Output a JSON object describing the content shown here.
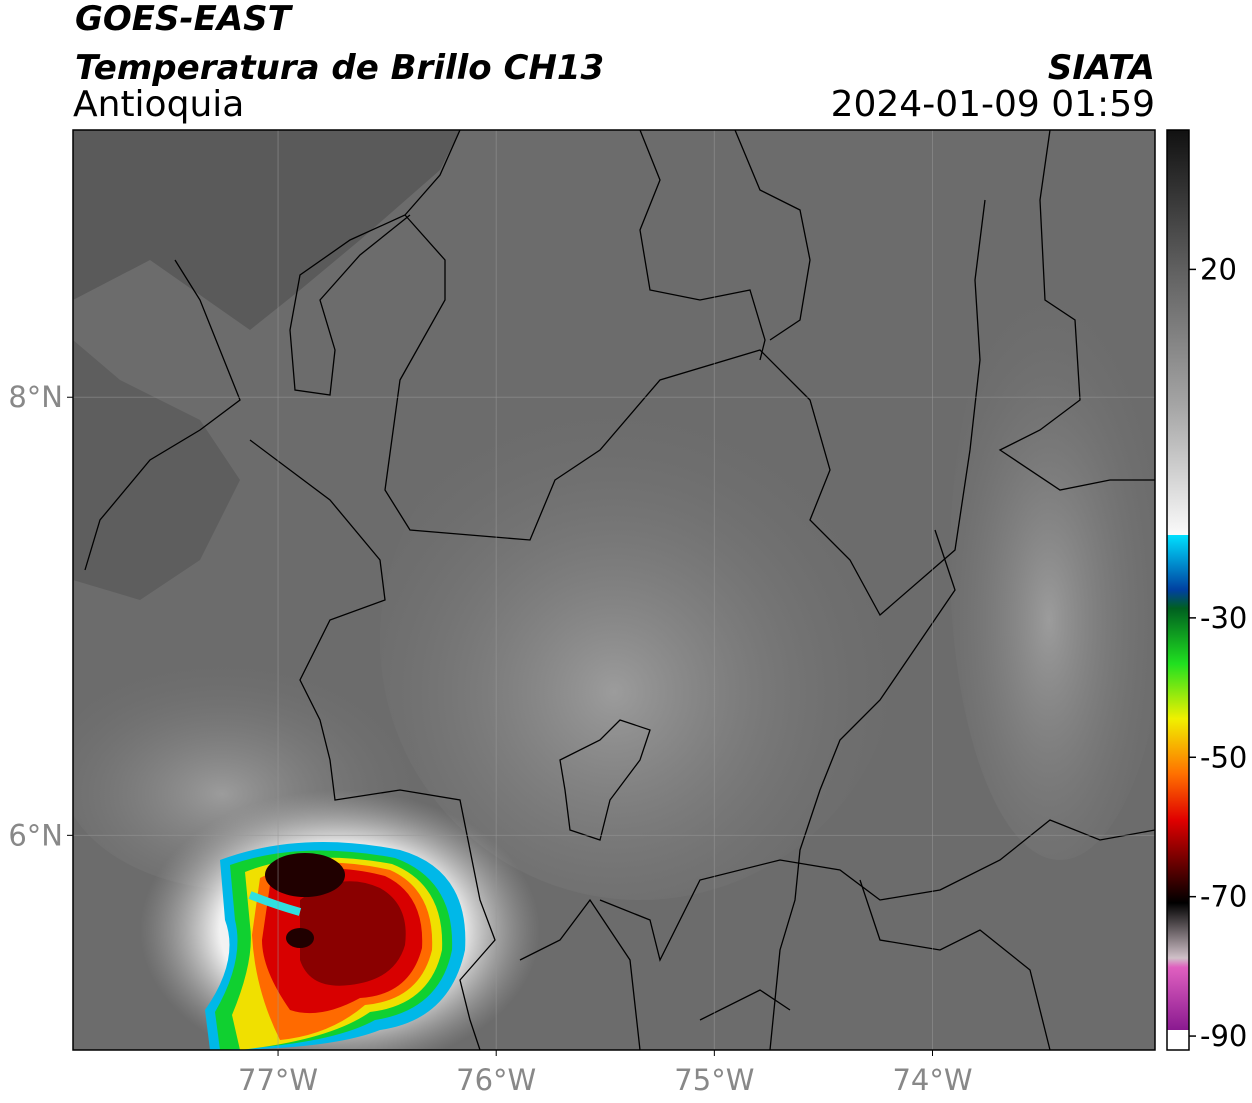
{
  "header": {
    "title": "GOES-EAST",
    "subtitle": "Temperatura de Brillo CH13",
    "region": "Antioquia",
    "source": "SIATA",
    "datetime": "2024-01-09 01:59"
  },
  "map": {
    "xlim": [
      -77.94,
      -72.98
    ],
    "ylim": [
      5.02,
      9.22
    ],
    "xticks": [
      {
        "value": -77,
        "label": "77°W"
      },
      {
        "value": -76,
        "label": "76°W"
      },
      {
        "value": -75,
        "label": "75°W"
      },
      {
        "value": -74,
        "label": "74°W"
      }
    ],
    "yticks": [
      {
        "value": 8,
        "label": "8°N"
      },
      {
        "value": 6,
        "label": "6°N"
      }
    ]
  },
  "colorbar": {
    "lim": [
      -92,
      40
    ],
    "ticks": [
      20,
      -30,
      -50,
      -70,
      -90
    ]
  }
}
